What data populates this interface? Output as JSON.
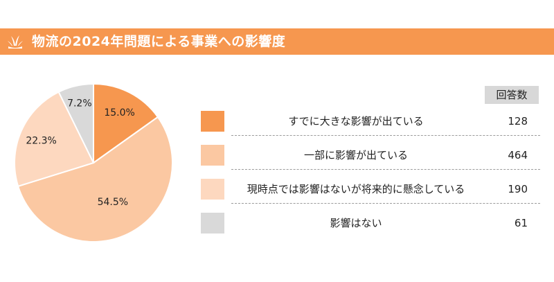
{
  "header": {
    "title": "物流の2024年問題による事業への影響度",
    "background": "#f6974f",
    "icon": "sprout-icon"
  },
  "table": {
    "count_header": "回答数",
    "rows": [
      {
        "label": "すでに大きな影響が出ている",
        "count": "128",
        "color": "#f6974f"
      },
      {
        "label": "一部に影響が出ている",
        "count": "464",
        "color": "#fbc8a2"
      },
      {
        "label": "現時点では影響はないが将来的に懸念している",
        "count": "190",
        "color": "#fdd8bf"
      },
      {
        "label": "影響はない",
        "count": "61",
        "color": "#d9d9d9"
      }
    ]
  },
  "chart_data": {
    "type": "pie",
    "title": "物流の2024年問題による事業への影響度",
    "slices": [
      {
        "label": "すでに大きな影響が出ている",
        "value": 15.0,
        "display": "15.0%",
        "count": 128,
        "color": "#f6974f"
      },
      {
        "label": "一部に影響が出ている",
        "value": 54.5,
        "display": "54.5%",
        "count": 464,
        "color": "#fbc8a2"
      },
      {
        "label": "現時点では影響はないが将来的に懸念している",
        "value": 22.3,
        "display": "22.3%",
        "count": 190,
        "color": "#fdd8bf"
      },
      {
        "label": "影響はない",
        "value": 7.2,
        "display": "7.2%",
        "count": 61,
        "color": "#d9d9d9"
      }
    ],
    "start_angle": "12 o'clock",
    "direction": "clockwise"
  }
}
